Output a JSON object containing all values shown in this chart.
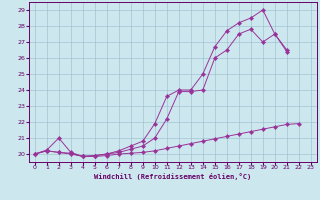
{
  "x": [
    0,
    1,
    2,
    3,
    4,
    5,
    6,
    7,
    8,
    9,
    10,
    11,
    12,
    13,
    14,
    15,
    16,
    17,
    18,
    19,
    20,
    21,
    22,
    23
  ],
  "line1": [
    20.0,
    20.2,
    20.1,
    20.05,
    19.85,
    19.85,
    19.9,
    20.0,
    20.05,
    20.1,
    20.2,
    20.35,
    20.5,
    20.65,
    20.8,
    20.95,
    21.1,
    21.25,
    21.4,
    21.55,
    21.7,
    21.85,
    21.9,
    null
  ],
  "line2": [
    20.0,
    20.2,
    20.1,
    20.0,
    19.85,
    19.9,
    20.0,
    20.1,
    20.3,
    20.5,
    21.0,
    22.2,
    23.9,
    23.9,
    24.0,
    26.0,
    26.5,
    27.5,
    27.8,
    27.0,
    27.5,
    26.4,
    null,
    null
  ],
  "line3": [
    20.0,
    20.25,
    21.0,
    20.1,
    19.85,
    19.9,
    20.0,
    20.2,
    20.5,
    20.8,
    21.9,
    23.6,
    24.0,
    24.0,
    25.0,
    26.7,
    27.7,
    28.2,
    28.5,
    29.0,
    27.5,
    26.5,
    null,
    null
  ],
  "xlabel": "Windchill (Refroidissement éolien,°C)",
  "yticks": [
    20,
    21,
    22,
    23,
    24,
    25,
    26,
    27,
    28,
    29
  ],
  "xticks": [
    0,
    1,
    2,
    3,
    4,
    5,
    6,
    7,
    8,
    9,
    10,
    11,
    12,
    13,
    14,
    15,
    16,
    17,
    18,
    19,
    20,
    21,
    22,
    23
  ],
  "line_color": "#993399",
  "bg_color": "#cce8ee",
  "grid_color": "#99bbcc",
  "spine_color": "#660066",
  "tick_color": "#660066"
}
